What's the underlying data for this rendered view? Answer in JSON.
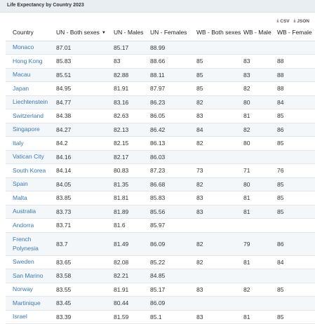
{
  "title": "Life Expectancy by Country 2023",
  "downloads": {
    "csv": "CSV",
    "json": "JSON"
  },
  "icons": {
    "download": "download-icon",
    "sort": "sort-desc-icon"
  },
  "colors": {
    "link": "#3a78b5",
    "header_bg": "#e9eef3",
    "row_alt": "#f4f7fa"
  },
  "columns": [
    "Country",
    "UN - Both sexes",
    "UN - Males",
    "UN - Females",
    "WB - Both sexes",
    "WB - Male",
    "WB - Female"
  ],
  "rows": [
    [
      "Monaco",
      "87.01",
      "85.17",
      "88.99",
      "",
      "",
      ""
    ],
    [
      "Hong Kong",
      "85.83",
      "83",
      "88.66",
      "85",
      "83",
      "88"
    ],
    [
      "Macau",
      "85.51",
      "82.88",
      "88.11",
      "85",
      "83",
      "88"
    ],
    [
      "Japan",
      "84.95",
      "81.91",
      "87.97",
      "85",
      "82",
      "88"
    ],
    [
      "Liechtenstein",
      "84.77",
      "83.16",
      "86.23",
      "82",
      "80",
      "84"
    ],
    [
      "Switzerland",
      "84.38",
      "82.63",
      "86.05",
      "83",
      "81",
      "85"
    ],
    [
      "Singapore",
      "84.27",
      "82.13",
      "86.42",
      "84",
      "82",
      "86"
    ],
    [
      "Italy",
      "84.2",
      "82.15",
      "86.13",
      "82",
      "80",
      "85"
    ],
    [
      "Vatican City",
      "84.16",
      "82.17",
      "86.03",
      "",
      "",
      ""
    ],
    [
      "South Korea",
      "84.14",
      "80.83",
      "87.23",
      "73",
      "71",
      "76"
    ],
    [
      "Spain",
      "84.05",
      "81.35",
      "86.68",
      "82",
      "80",
      "85"
    ],
    [
      "Malta",
      "83.85",
      "81.81",
      "85.83",
      "83",
      "81",
      "85"
    ],
    [
      "Australia",
      "83.73",
      "81.89",
      "85.56",
      "83",
      "81",
      "85"
    ],
    [
      "Andorra",
      "83.71",
      "81.6",
      "85.97",
      "",
      "",
      ""
    ],
    [
      "French Polynesia",
      "83.7",
      "81.49",
      "86.09",
      "82",
      "79",
      "86"
    ],
    [
      "Sweden",
      "83.65",
      "82.08",
      "85.22",
      "82",
      "81",
      "84"
    ],
    [
      "San Marino",
      "83.58",
      "82.21",
      "84.85",
      "",
      "",
      ""
    ],
    [
      "Norway",
      "83.55",
      "81.91",
      "85.17",
      "83",
      "82",
      "85"
    ],
    [
      "Martinique",
      "83.45",
      "80.44",
      "86.09",
      "",
      "",
      ""
    ],
    [
      "Israel",
      "83.39",
      "81.59",
      "85.1",
      "83",
      "81",
      "85"
    ]
  ]
}
